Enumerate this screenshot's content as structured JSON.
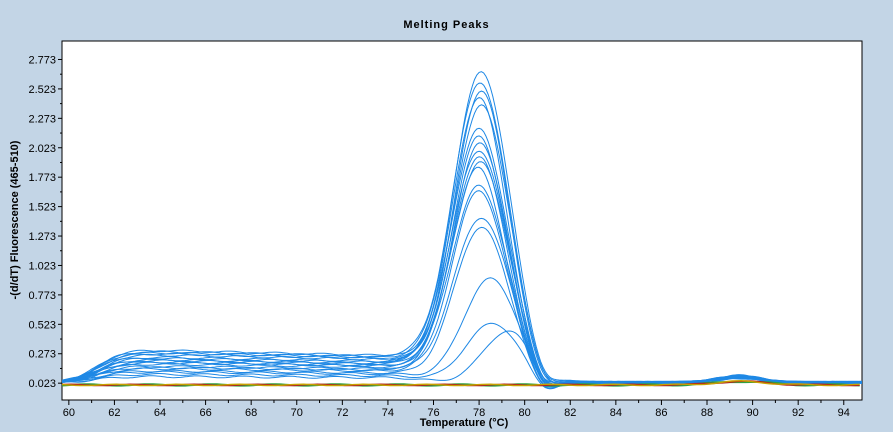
{
  "chart_data": {
    "type": "line",
    "title": "Melting Peaks",
    "xlabel": "Temperature (°C)",
    "ylabel": "-(d/dT) Fluorescence (465-510)",
    "xlim": [
      59.7,
      94.8
    ],
    "ylim": [
      -0.12,
      2.93
    ],
    "x_ticks": [
      60,
      62,
      64,
      66,
      68,
      70,
      72,
      74,
      76,
      78,
      80,
      82,
      84,
      86,
      88,
      90,
      92,
      94
    ],
    "y_ticks": [
      0.023,
      0.273,
      0.523,
      0.773,
      1.023,
      1.273,
      1.523,
      1.773,
      2.023,
      2.273,
      2.523,
      2.773
    ],
    "y_tick_labels": [
      "0.023",
      "0.273",
      "0.523",
      "0.773",
      "1.023",
      "1.273",
      "1.523",
      "1.773",
      "2.023",
      "2.273",
      "2.523",
      "2.773"
    ],
    "grid": false,
    "legend": "none",
    "series_color": "#1e88e5",
    "flat_series_colors": [
      "#2ea043",
      "#b22222",
      "#c8a000"
    ],
    "series_params": [
      {
        "base": 0.26,
        "peak": 2.67,
        "center": 78.1,
        "width": 1.25
      },
      {
        "base": 0.28,
        "peak": 2.58,
        "center": 78.05,
        "width": 1.25
      },
      {
        "base": 0.25,
        "peak": 2.51,
        "center": 78.1,
        "width": 1.2
      },
      {
        "base": 0.22,
        "peak": 2.45,
        "center": 78.0,
        "width": 1.2
      },
      {
        "base": 0.27,
        "peak": 2.38,
        "center": 78.1,
        "width": 1.25
      },
      {
        "base": 0.2,
        "peak": 2.18,
        "center": 78.0,
        "width": 1.25
      },
      {
        "base": 0.24,
        "peak": 2.12,
        "center": 78.0,
        "width": 1.2
      },
      {
        "base": 0.18,
        "peak": 2.07,
        "center": 78.05,
        "width": 1.2
      },
      {
        "base": 0.21,
        "peak": 2.0,
        "center": 78.0,
        "width": 1.25
      },
      {
        "base": 0.16,
        "peak": 1.95,
        "center": 78.0,
        "width": 1.2
      },
      {
        "base": 0.19,
        "peak": 1.9,
        "center": 78.05,
        "width": 1.25
      },
      {
        "base": 0.13,
        "peak": 1.85,
        "center": 77.95,
        "width": 1.2
      },
      {
        "base": 0.17,
        "peak": 1.7,
        "center": 78.0,
        "width": 1.25
      },
      {
        "base": 0.12,
        "peak": 1.66,
        "center": 78.0,
        "width": 1.2
      },
      {
        "base": 0.14,
        "peak": 1.43,
        "center": 78.1,
        "width": 1.25
      },
      {
        "base": 0.1,
        "peak": 1.35,
        "center": 78.1,
        "width": 1.2
      },
      {
        "base": 0.09,
        "peak": 0.91,
        "center": 78.5,
        "width": 1.2
      },
      {
        "base": 0.07,
        "peak": 0.53,
        "center": 78.6,
        "width": 1.2
      },
      {
        "base": 0.05,
        "peak": 0.47,
        "center": 79.3,
        "width": 1.1
      }
    ]
  }
}
